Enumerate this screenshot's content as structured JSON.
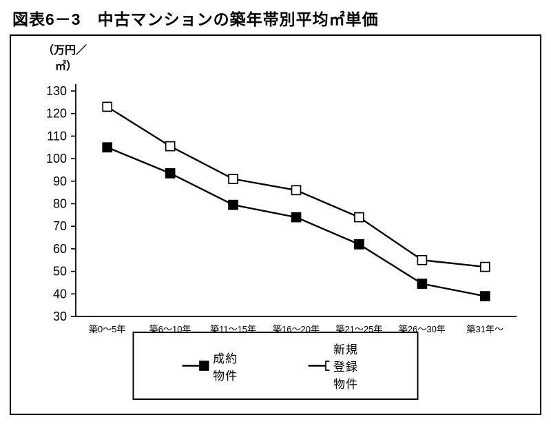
{
  "chart_data": {
    "type": "line",
    "title": "図表6－3　中古マンションの築年帯別平均㎡単価",
    "unit_label_line1": "（万円／",
    "unit_label_line2": "㎡）",
    "categories": [
      "築0～5年",
      "築6～10年",
      "築11～15年",
      "築16～20年",
      "築21～25年",
      "築26～30年",
      "築31年～"
    ],
    "series": [
      {
        "name": "成約物件",
        "marker": "filled-square",
        "values": [
          105,
          93.5,
          79.5,
          74,
          62,
          44.5,
          39
        ]
      },
      {
        "name": "新規登録物件",
        "marker": "open-square",
        "values": [
          123,
          105.5,
          91,
          86,
          74,
          55,
          52
        ]
      }
    ],
    "xlabel": "",
    "ylabel": "（万円／㎡）",
    "ylim": [
      30,
      130
    ],
    "ytick_step": 10,
    "grid": false,
    "legend_position": "bottom-box",
    "colors": {
      "line": "#000000",
      "filled_marker": "#000000",
      "open_marker_fill": "#ffffff",
      "text": "#000000"
    }
  }
}
